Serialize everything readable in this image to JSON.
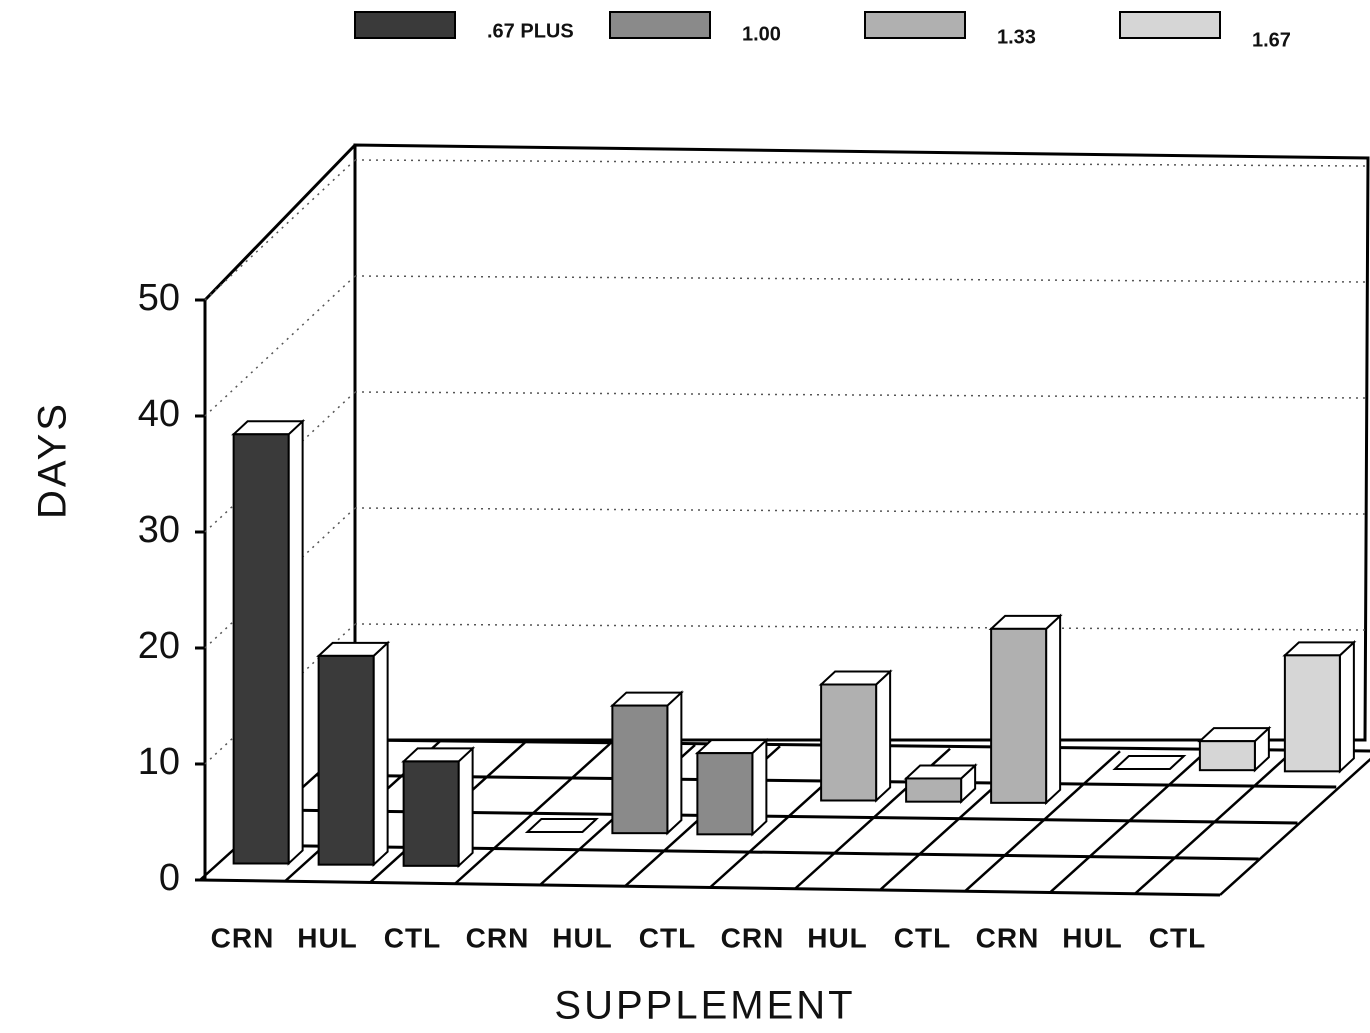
{
  "chart_data": {
    "type": "bar3d",
    "x_label": "SUPPLEMENT",
    "y_label": "DAYS",
    "categories": [
      "CRN",
      "HUL",
      "CTL",
      "CRN",
      "HUL",
      "CTL",
      "CRN",
      "HUL",
      "CTL",
      "CRN",
      "HUL",
      "CTL"
    ],
    "series": [
      {
        "name": ".67 PLUS",
        "color": "#3a3a3a",
        "values": [
          37,
          18,
          9,
          null,
          null,
          null,
          null,
          null,
          null,
          null,
          null,
          null
        ]
      },
      {
        "name": "1.00",
        "color": "#8a8a8a",
        "values": [
          null,
          null,
          null,
          0,
          11,
          7,
          null,
          null,
          null,
          null,
          null,
          null
        ]
      },
      {
        "name": "1.33",
        "color": "#b0b0b0",
        "values": [
          null,
          null,
          null,
          null,
          null,
          null,
          10,
          2,
          15,
          null,
          null,
          null
        ]
      },
      {
        "name": "1.67",
        "color": "#d6d6d6",
        "values": [
          null,
          null,
          null,
          null,
          null,
          null,
          null,
          null,
          null,
          0,
          2.5,
          10
        ]
      }
    ],
    "ylim": [
      0,
      50
    ],
    "yticks": [
      0,
      10,
      20,
      30,
      40,
      50
    ],
    "grid": true
  }
}
